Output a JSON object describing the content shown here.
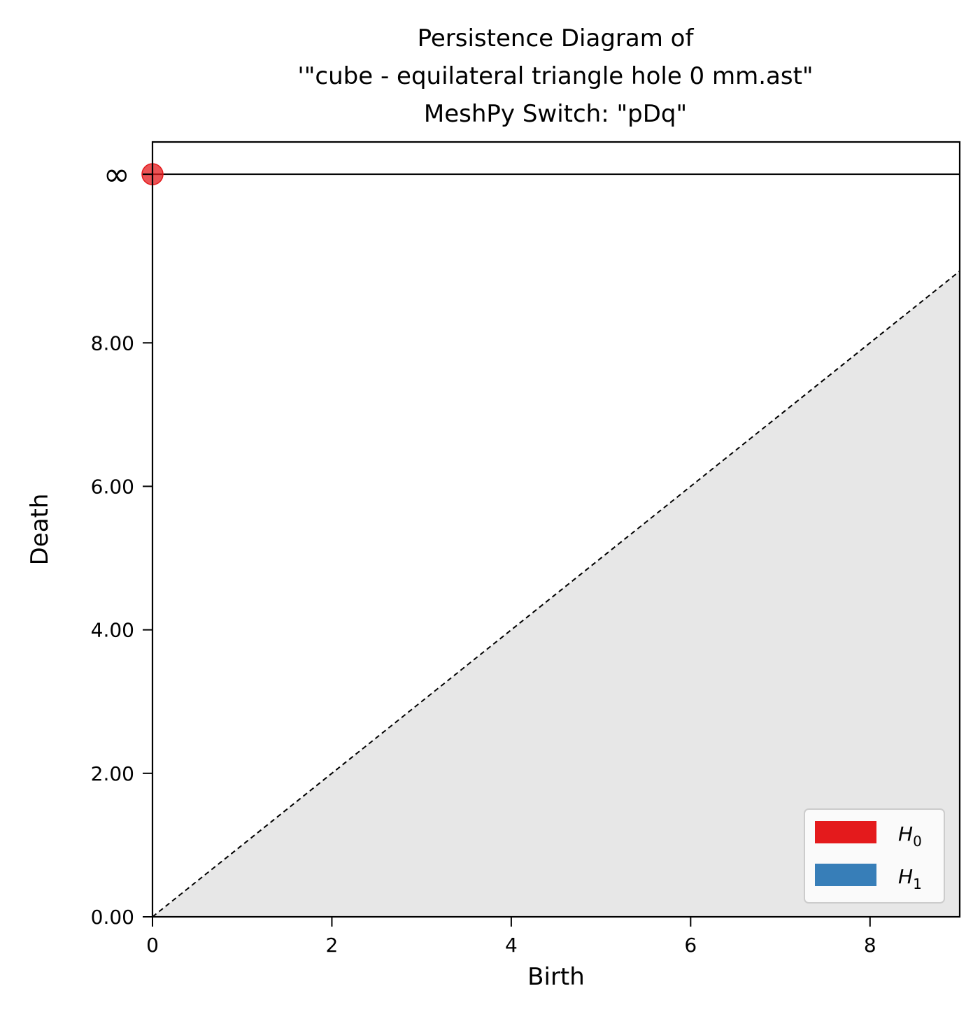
{
  "chart_data": {
    "type": "scatter",
    "title_lines": [
      "Persistence Diagram of",
      "'\"cube - equilateral triangle hole 0 mm.ast\"",
      "MeshPy Switch: \"pDq\""
    ],
    "xlabel": "Birth",
    "ylabel": "Death",
    "xlim": [
      0,
      9
    ],
    "ylim": [
      0,
      10.8
    ],
    "infinity_level": 10.35,
    "infinity_label": "∞",
    "x_ticks": [
      {
        "value": 0,
        "label": "0"
      },
      {
        "value": 2,
        "label": "2"
      },
      {
        "value": 4,
        "label": "4"
      },
      {
        "value": 6,
        "label": "6"
      },
      {
        "value": 8,
        "label": "8"
      }
    ],
    "y_ticks": [
      {
        "value": 0,
        "label": "0.00"
      },
      {
        "value": 2,
        "label": "2.00"
      },
      {
        "value": 4,
        "label": "4.00"
      },
      {
        "value": 6,
        "label": "6.00"
      },
      {
        "value": 8,
        "label": "8.00"
      }
    ],
    "diagonal": {
      "style": "dashed",
      "below_fill_color": "#e7e7e7"
    },
    "series": [
      {
        "name": "H",
        "subscript": "0",
        "color": "#e41a1c",
        "points": [
          {
            "birth": 0,
            "death": "infinity"
          }
        ]
      },
      {
        "name": "H",
        "subscript": "1",
        "color": "#377eb8",
        "points": []
      }
    ],
    "legend_placement": "lower-right",
    "grid": false
  }
}
